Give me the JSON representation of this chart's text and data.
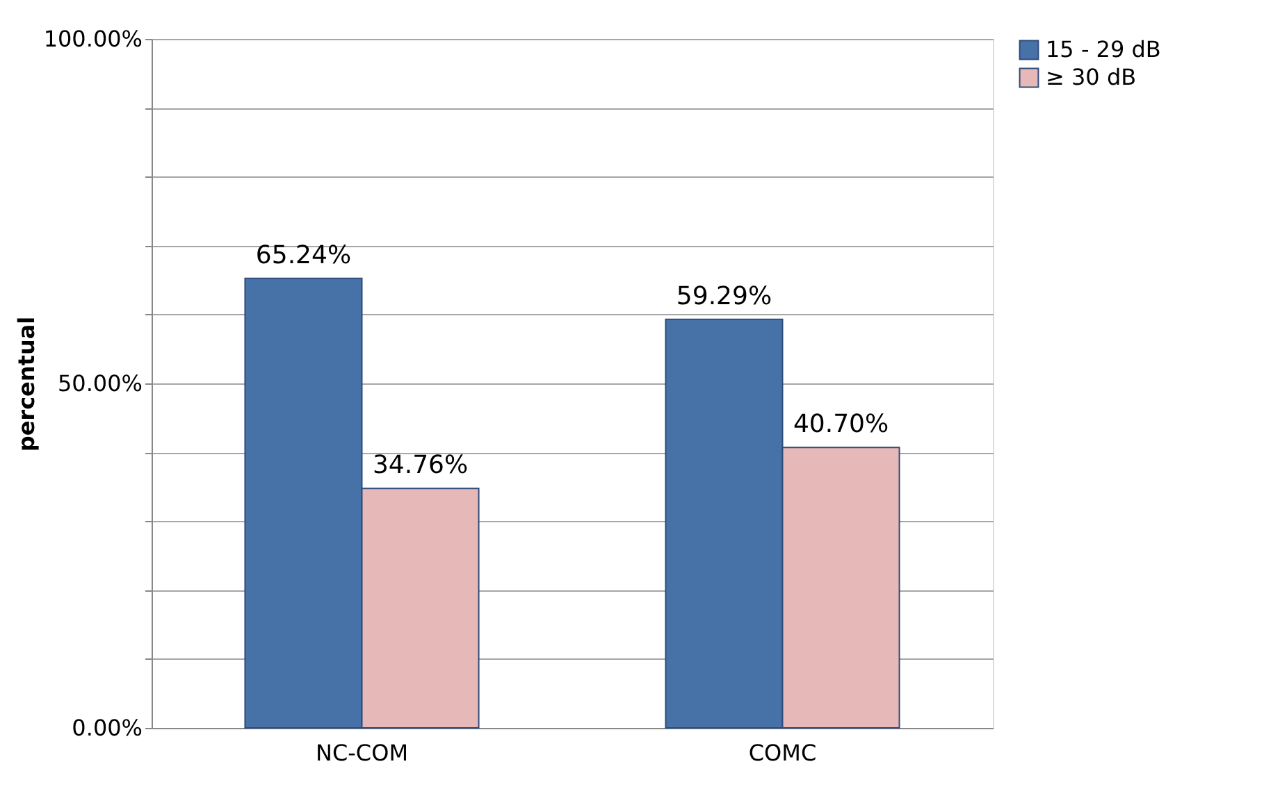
{
  "chart_data": {
    "type": "bar",
    "ylabel": "percentual",
    "categories": [
      "NC-COM",
      "COMC"
    ],
    "series": [
      {
        "name": "15 - 29 dB",
        "color": "#4672a8",
        "values": [
          65.24,
          59.29
        ],
        "value_labels": [
          "65.24%",
          "59.29%"
        ]
      },
      {
        "name": "≥ 30 dB",
        "color": "#e6b8b7",
        "values": [
          34.76,
          40.7
        ],
        "value_labels": [
          "34.76%",
          "40.70%"
        ]
      }
    ],
    "ylim": [
      0,
      100
    ],
    "yticks": [
      {
        "value": 0,
        "label": "0.00%"
      },
      {
        "value": 10,
        "label": null
      },
      {
        "value": 20,
        "label": null
      },
      {
        "value": 30,
        "label": null
      },
      {
        "value": 40,
        "label": null
      },
      {
        "value": 50,
        "label": "50.00%"
      },
      {
        "value": 60,
        "label": null
      },
      {
        "value": 70,
        "label": null
      },
      {
        "value": 80,
        "label": null
      },
      {
        "value": 90,
        "label": null
      },
      {
        "value": 100,
        "label": "100.00%"
      }
    ],
    "grid": "y",
    "legend": "right"
  }
}
